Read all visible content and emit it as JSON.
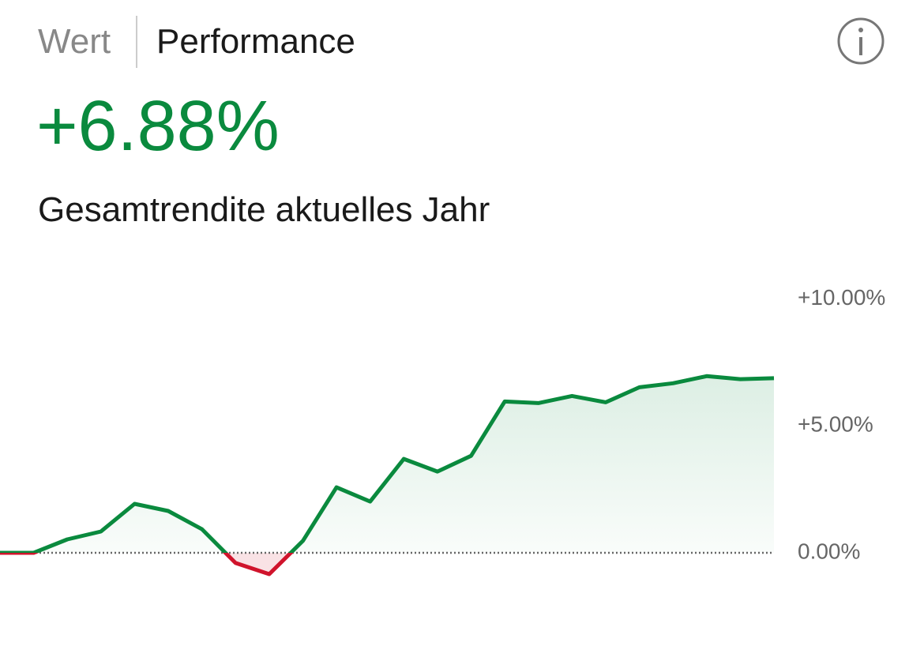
{
  "header": {
    "tabs": [
      "Wert",
      "Performance"
    ],
    "value": "+6.88%",
    "subtitle": "Gesamtrendite aktuelles Jahr"
  },
  "chart_data": {
    "type": "line",
    "values": [
      0,
      0,
      0.53,
      0.84,
      1.93,
      1.65,
      0.93,
      -0.4,
      -0.84,
      0.47,
      2.58,
      2.02,
      3.7,
      3.2,
      3.82,
      5.96,
      5.9,
      6.18,
      5.93,
      6.52,
      6.68,
      6.96,
      6.84,
      6.88
    ],
    "color": "#0a8a3e",
    "negative_color": "#d0142c",
    "ylim": [
      -2.8,
      11.2
    ],
    "yticks": [
      {
        "value": 10,
        "label": "+10.00%"
      },
      {
        "value": 5,
        "label": "+5.00%"
      },
      {
        "value": 0,
        "label": "0.00%"
      }
    ]
  }
}
